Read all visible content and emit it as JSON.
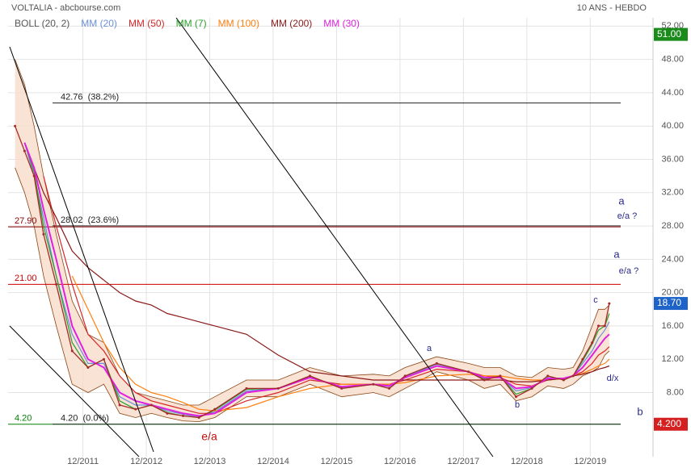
{
  "chart_data": {
    "type": "line",
    "title": "VOLTALIA - abcbourse.com",
    "subtitle": "10 ANS - HEBDO",
    "x": [
      2010.85,
      2011.0,
      2011.15,
      2011.3,
      2011.5,
      2011.75,
      2012.0,
      2012.25,
      2012.5,
      2012.75,
      2013.0,
      2013.25,
      2013.5,
      2013.75,
      2014.0,
      2014.5,
      2015.0,
      2015.5,
      2016.0,
      2016.5,
      2016.75,
      2017.0,
      2017.5,
      2018.0,
      2018.25,
      2018.5,
      2018.75,
      2019.0,
      2019.25,
      2019.5,
      2019.65,
      2019.8,
      2019.95,
      2020.05,
      2020.15,
      2020.22
    ],
    "xlim": [
      2010.74,
      2020.91
    ],
    "xticks": [
      {
        "value": 2011.92,
        "label": "12/2011"
      },
      {
        "value": 2012.92,
        "label": "12/2012"
      },
      {
        "value": 2013.92,
        "label": "12/2013"
      },
      {
        "value": 2014.92,
        "label": "12/2014"
      },
      {
        "value": 2015.92,
        "label": "12/2015"
      },
      {
        "value": 2016.92,
        "label": "12/2016"
      },
      {
        "value": 2017.92,
        "label": "12/2017"
      },
      {
        "value": 2018.92,
        "label": "12/2018"
      },
      {
        "value": 2019.92,
        "label": "12/2019"
      }
    ],
    "ylim": [
      0.3,
      53
    ],
    "yticks": [
      {
        "value": 8,
        "label": "8.00"
      },
      {
        "value": 12,
        "label": "12.00"
      },
      {
        "value": 16,
        "label": "16.00"
      },
      {
        "value": 20,
        "label": "20.00"
      },
      {
        "value": 24,
        "label": "24.00"
      },
      {
        "value": 28,
        "label": "28.00"
      },
      {
        "value": 32,
        "label": "32.00"
      },
      {
        "value": 36,
        "label": "36.00"
      },
      {
        "value": 40,
        "label": "40.00"
      },
      {
        "value": 44,
        "label": "44.00"
      },
      {
        "value": 48,
        "label": "48.00"
      },
      {
        "value": 52,
        "label": "52.00"
      }
    ],
    "grid": true,
    "price": {
      "color": "#a52a2a",
      "values": [
        40,
        37,
        34,
        27,
        21,
        13,
        11,
        12,
        6.5,
        6,
        6.5,
        5.5,
        5.2,
        5,
        6,
        8.5,
        8.5,
        10,
        8.5,
        9,
        8.5,
        10,
        11.5,
        10.5,
        9.5,
        10,
        7.5,
        8.5,
        10,
        9.5,
        10,
        12,
        14,
        16,
        16,
        18.7
      ]
    },
    "bollinger": {
      "name": "BOLL (20, 2)",
      "color": "#8b4513",
      "fill": "#f6dccb",
      "upper": [
        48,
        45,
        40,
        34,
        27,
        19,
        15,
        14,
        10,
        8,
        7.5,
        7,
        6.5,
        6.5,
        7.5,
        9.5,
        9.5,
        11,
        10,
        10.2,
        10,
        11,
        12.3,
        11.5,
        11,
        11,
        10,
        9.8,
        11,
        10.8,
        11,
        13,
        16,
        18,
        18,
        18.5
      ],
      "lower": [
        35,
        32,
        28,
        22,
        16,
        9,
        8,
        9,
        5.5,
        5,
        5.5,
        5,
        4.6,
        4.5,
        5,
        7.5,
        7.5,
        9,
        7.5,
        8,
        7.5,
        8.5,
        10.5,
        9.5,
        8.5,
        9,
        7,
        7.5,
        8.8,
        8.5,
        9,
        10,
        10.5,
        11,
        12.5,
        13
      ]
    },
    "series": [
      {
        "name": "MM (20)",
        "color": "#6a8fd8",
        "values": [
          null,
          38,
          34,
          29,
          22,
          15,
          11.5,
          11.5,
          7.5,
          6.5,
          6.5,
          5.8,
          5.4,
          5.1,
          5.7,
          8.2,
          8.5,
          9.9,
          8.6,
          9,
          8.7,
          9.9,
          11.4,
          10.5,
          9.7,
          9.9,
          8.2,
          8.6,
          9.8,
          9.6,
          10,
          11.5,
          13,
          14.5,
          15.5,
          16.5
        ]
      },
      {
        "name": "MM (50)",
        "color": "#d62728",
        "values": [
          null,
          null,
          null,
          34,
          28,
          21,
          15,
          13,
          10,
          8,
          7,
          6.5,
          6,
          5.5,
          5.5,
          7,
          8,
          9.5,
          9,
          9,
          9,
          9.5,
          10.8,
          10.5,
          10,
          9.8,
          9,
          8.8,
          9.5,
          9.7,
          10,
          10.5,
          11.5,
          12.5,
          13,
          13.5
        ]
      },
      {
        "name": "MM (7)",
        "color": "#2ca02c",
        "values": [
          null,
          38,
          34.5,
          28,
          22,
          14,
          11,
          12,
          7,
          6,
          6.5,
          5.6,
          5.2,
          5,
          5.9,
          8.4,
          8.5,
          10,
          8.5,
          9,
          8.5,
          10,
          11.5,
          10.5,
          9.6,
          10,
          7.8,
          8.5,
          10,
          9.5,
          10,
          11.8,
          13.8,
          15.5,
          16,
          17.5
        ]
      },
      {
        "name": "MM (100)",
        "color": "#ff7f0e",
        "values": [
          null,
          null,
          null,
          null,
          null,
          22,
          18,
          14,
          11,
          9,
          8,
          7.5,
          6.8,
          6,
          5.8,
          6.2,
          7.5,
          8.5,
          9,
          9,
          9,
          9.2,
          10,
          10.2,
          10,
          10,
          9.7,
          9.5,
          9.5,
          9.7,
          10,
          10.3,
          10.8,
          11.2,
          11.5,
          12
        ]
      },
      {
        "name": "MM (200)",
        "color": "#8b1a1a",
        "values": [
          null,
          38,
          35,
          32,
          29,
          25,
          23,
          21.5,
          20,
          19,
          18.5,
          17.5,
          17,
          16.5,
          16,
          15,
          12.5,
          10.5,
          10,
          9.5,
          9.5,
          9.5,
          9.5,
          9.5,
          9.5,
          9.5,
          9.3,
          9.3,
          9.5,
          9.7,
          10,
          10.2,
          10.5,
          10.8,
          11,
          11.2
        ]
      },
      {
        "name": "MM (30)",
        "color": "#e020e0",
        "values": [
          null,
          38,
          35,
          30,
          24,
          16,
          12,
          11,
          8,
          7,
          6.5,
          6,
          5.5,
          5.2,
          5.5,
          8,
          8.5,
          9.8,
          8.7,
          9,
          8.8,
          9.8,
          11.2,
          10.5,
          9.8,
          9.8,
          8.5,
          8.7,
          9.7,
          9.7,
          10,
          11,
          12.5,
          13.5,
          14.5,
          15
        ]
      }
    ],
    "levels": [
      {
        "value": 42.76,
        "label": "42.76  (38.2%)",
        "color": "#000000"
      },
      {
        "value": 28.02,
        "label": "28.02  (23.6%)",
        "color": "#000000"
      },
      {
        "value": 4.2,
        "label": "4.20  (0.0%)",
        "color": "#000000"
      }
    ],
    "supports": [
      {
        "value": 27.9,
        "label": "27.90",
        "color": "#8b0000"
      },
      {
        "value": 21,
        "label": "21.00",
        "color": "#cc0000"
      },
      {
        "value": 4.2,
        "label": "4.20",
        "color": "#008000"
      }
    ],
    "badges": [
      {
        "value": 51,
        "label": "51.00",
        "color": "#1a8a1a"
      },
      {
        "value": 18.7,
        "label": "18.70",
        "color": "#1e64c8"
      },
      {
        "value": 4.2,
        "label": "4.200",
        "color": "#d42020"
      }
    ],
    "annotations": [
      "a",
      "e/a ?",
      "a",
      "e/a ?",
      "c",
      "a",
      "b",
      "d/x",
      "b",
      "e/a"
    ]
  }
}
